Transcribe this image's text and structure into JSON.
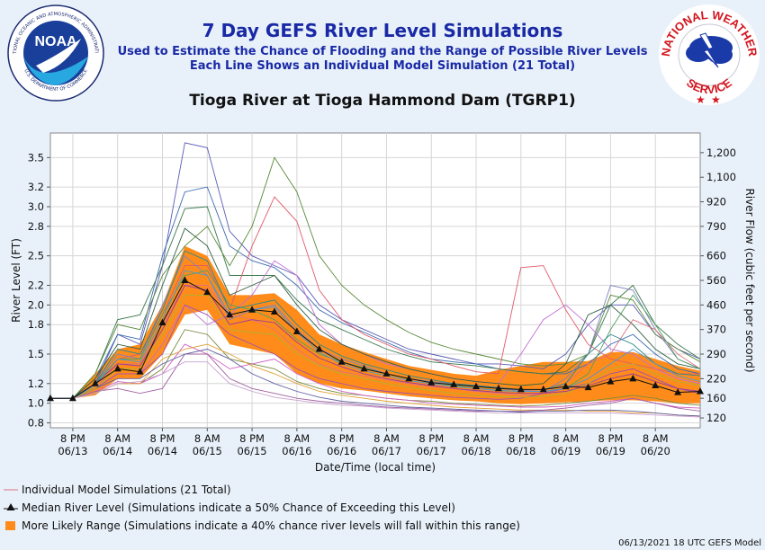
{
  "header": {
    "title": "7 Day GEFS River Level Simulations",
    "subtitle1": "Used to Estimate the Chance of Flooding and the Range of Possible River Levels",
    "subtitle2": "Each Line Shows an Individual Model Simulation (21 Total)",
    "noaa_logo_text": "NOAA",
    "noaa_ring_top": "NATIONAL OCEANIC AND ATMOSPHERIC ADMINISTRATION",
    "noaa_ring_bottom": "U.S. DEPARTMENT OF COMMERCE",
    "nws_ring_top": "NATIONAL WEATHER",
    "nws_ring_bottom": "SERVICE"
  },
  "legend": {
    "individual": "Individual Model Simulations (21 Total)",
    "median": "Median River Level (Simulations indicate a 50% Chance of Exceeding this Level)",
    "range": "More Likely Range (Simulations indicate a 40% chance river levels will fall within this range)"
  },
  "footer": "06/13/2021 18 UTC GEFS Model",
  "colors": {
    "range_fill": "#ff8c1a",
    "median_line": "#111111",
    "title_blue": "#1a2aa6",
    "nws_red": "#d4141e"
  },
  "chart_data": {
    "type": "line",
    "title": "Tioga River at Tioga Hammond Dam (TGRP1)",
    "xlabel": "Date/Time (local time)",
    "ylabel": "River Level (FT)",
    "y2label": "River Flow (cubic feet per second)",
    "xlim": [
      0,
      29
    ],
    "ylim": [
      0.75,
      3.75
    ],
    "yticks": [
      0.8,
      1.0,
      1.2,
      1.5,
      1.8,
      2.0,
      2.2,
      2.5,
      2.8,
      3.0,
      3.2,
      3.5
    ],
    "y2ticks": [
      {
        "level": 0.85,
        "label": "120"
      },
      {
        "level": 1.05,
        "label": "160"
      },
      {
        "level": 1.25,
        "label": "220"
      },
      {
        "level": 1.5,
        "label": "290"
      },
      {
        "level": 1.75,
        "label": "370"
      },
      {
        "level": 2.0,
        "label": "460"
      },
      {
        "level": 2.25,
        "label": "560"
      },
      {
        "level": 2.5,
        "label": "660"
      },
      {
        "level": 2.8,
        "label": "790"
      },
      {
        "level": 3.05,
        "label": "920"
      },
      {
        "level": 3.3,
        "label": "1,100"
      },
      {
        "level": 3.55,
        "label": "1,200"
      }
    ],
    "xticks": [
      {
        "x": 1,
        "label1": "8 PM",
        "label2": "06/13"
      },
      {
        "x": 3,
        "label1": "8 AM",
        "label2": "06/14"
      },
      {
        "x": 5,
        "label1": "8 PM",
        "label2": "06/14"
      },
      {
        "x": 7,
        "label1": "8 AM",
        "label2": "06/15"
      },
      {
        "x": 9,
        "label1": "8 PM",
        "label2": "06/15"
      },
      {
        "x": 11,
        "label1": "8 AM",
        "label2": "06/16"
      },
      {
        "x": 13,
        "label1": "8 PM",
        "label2": "06/16"
      },
      {
        "x": 15,
        "label1": "8 AM",
        "label2": "06/17"
      },
      {
        "x": 17,
        "label1": "8 PM",
        "label2": "06/17"
      },
      {
        "x": 19,
        "label1": "8 AM",
        "label2": "06/18"
      },
      {
        "x": 21,
        "label1": "8 PM",
        "label2": "06/18"
      },
      {
        "x": 23,
        "label1": "8 AM",
        "label2": "06/19"
      },
      {
        "x": 25,
        "label1": "8 PM",
        "label2": "06/19"
      },
      {
        "x": 27,
        "label1": "8 AM",
        "label2": "06/20"
      }
    ],
    "grid": true,
    "range_upper": [
      1.05,
      1.05,
      1.3,
      1.55,
      1.6,
      2.0,
      2.6,
      2.5,
      2.1,
      2.1,
      2.12,
      1.95,
      1.7,
      1.6,
      1.52,
      1.45,
      1.38,
      1.34,
      1.3,
      1.28,
      1.34,
      1.38,
      1.42,
      1.42,
      1.43,
      1.52,
      1.52,
      1.45,
      1.38,
      1.33
    ],
    "range_lower": [
      1.05,
      1.05,
      1.08,
      1.25,
      1.25,
      1.5,
      1.9,
      1.95,
      1.6,
      1.55,
      1.5,
      1.3,
      1.2,
      1.15,
      1.13,
      1.1,
      1.07,
      1.05,
      1.03,
      1.02,
      1.0,
      0.99,
      1.0,
      1.01,
      1.02,
      1.03,
      1.03,
      1.02,
      1.0,
      1.0
    ],
    "median": [
      1.05,
      1.05,
      1.2,
      1.35,
      1.32,
      1.82,
      2.25,
      2.13,
      1.9,
      1.95,
      1.93,
      1.73,
      1.55,
      1.42,
      1.35,
      1.3,
      1.25,
      1.21,
      1.19,
      1.17,
      1.15,
      1.14,
      1.14,
      1.17,
      1.16,
      1.22,
      1.25,
      1.18,
      1.11,
      1.12
    ],
    "series": [
      {
        "color": "#5a5ab8",
        "values": [
          1.05,
          1.05,
          1.2,
          1.7,
          1.6,
          2.4,
          3.65,
          3.6,
          2.75,
          2.5,
          2.4,
          2.3,
          2.0,
          1.85,
          1.75,
          1.65,
          1.55,
          1.5,
          1.45,
          1.4,
          1.4,
          1.38,
          1.35,
          1.5,
          1.8,
          2.0,
          2.0,
          1.7,
          1.55,
          1.45
        ]
      },
      {
        "color": "#3a6ab0",
        "values": [
          1.05,
          1.05,
          1.25,
          1.7,
          1.65,
          2.5,
          3.15,
          3.2,
          2.6,
          2.45,
          2.38,
          2.2,
          1.95,
          1.82,
          1.72,
          1.62,
          1.52,
          1.45,
          1.42,
          1.4,
          1.35,
          1.32,
          1.3,
          1.3,
          1.4,
          1.6,
          1.7,
          1.5,
          1.35,
          1.3
        ]
      },
      {
        "color": "#3b7a4e",
        "values": [
          1.05,
          1.05,
          1.3,
          1.85,
          1.9,
          2.4,
          2.98,
          3.0,
          2.3,
          2.3,
          2.3,
          2.05,
          1.85,
          1.75,
          1.65,
          1.55,
          1.48,
          1.42,
          1.4,
          1.38,
          1.35,
          1.32,
          1.3,
          1.32,
          1.5,
          2.0,
          2.2,
          1.8,
          1.6,
          1.45
        ]
      },
      {
        "color": "#5a8a3a",
        "values": [
          1.05,
          1.05,
          1.3,
          1.8,
          1.75,
          2.3,
          2.6,
          2.8,
          2.4,
          2.8,
          3.5,
          3.15,
          2.5,
          2.2,
          2.0,
          1.85,
          1.72,
          1.62,
          1.55,
          1.5,
          1.45,
          1.4,
          1.38,
          1.4,
          1.5,
          2.1,
          2.05,
          1.7,
          1.55,
          1.42
        ]
      },
      {
        "color": "#e05a6a",
        "values": [
          1.05,
          1.05,
          1.2,
          1.45,
          1.5,
          1.9,
          2.4,
          2.4,
          1.95,
          2.6,
          3.1,
          2.85,
          2.15,
          1.85,
          1.7,
          1.6,
          1.5,
          1.45,
          1.38,
          1.32,
          1.3,
          2.38,
          2.4,
          1.95,
          1.6,
          1.45,
          1.4,
          1.35,
          1.3,
          1.3
        ]
      },
      {
        "color": "#c070d0",
        "values": [
          1.05,
          1.05,
          1.15,
          1.3,
          1.3,
          1.6,
          2.0,
          1.8,
          1.9,
          2.1,
          2.45,
          2.3,
          1.8,
          1.6,
          1.5,
          1.4,
          1.35,
          1.3,
          1.25,
          1.22,
          1.2,
          1.5,
          1.85,
          2.0,
          1.8,
          1.55,
          1.5,
          1.35,
          1.25,
          1.2
        ]
      },
      {
        "color": "#306040",
        "values": [
          1.05,
          1.05,
          1.25,
          1.6,
          1.55,
          2.2,
          2.78,
          2.6,
          2.1,
          2.2,
          2.3,
          2.0,
          1.75,
          1.6,
          1.5,
          1.42,
          1.35,
          1.3,
          1.25,
          1.22,
          1.2,
          1.18,
          1.2,
          1.4,
          1.9,
          2.0,
          1.8,
          1.55,
          1.4,
          1.35
        ]
      },
      {
        "color": "#8080c0",
        "values": [
          1.05,
          1.05,
          1.2,
          1.5,
          1.45,
          2.0,
          2.5,
          2.3,
          1.85,
          1.95,
          2.0,
          1.75,
          1.55,
          1.45,
          1.38,
          1.3,
          1.25,
          1.22,
          1.2,
          1.18,
          1.15,
          1.13,
          1.12,
          1.25,
          1.5,
          2.2,
          2.15,
          1.75,
          1.45,
          1.35
        ]
      },
      {
        "color": "#e07080",
        "values": [
          1.05,
          1.05,
          1.15,
          1.4,
          1.4,
          1.8,
          2.2,
          2.2,
          1.9,
          1.85,
          1.75,
          1.55,
          1.4,
          1.32,
          1.28,
          1.24,
          1.2,
          1.17,
          1.15,
          1.12,
          1.1,
          1.08,
          1.1,
          1.2,
          1.4,
          1.5,
          1.85,
          1.75,
          1.5,
          1.35
        ]
      },
      {
        "color": "#50a060",
        "values": [
          1.05,
          1.05,
          1.2,
          1.45,
          1.45,
          1.9,
          2.3,
          2.35,
          2.0,
          1.95,
          1.85,
          1.65,
          1.5,
          1.42,
          1.36,
          1.3,
          1.25,
          1.21,
          1.18,
          1.15,
          1.13,
          1.12,
          1.12,
          1.15,
          1.3,
          1.75,
          2.1,
          1.8,
          1.45,
          1.35
        ]
      },
      {
        "color": "#a050b0",
        "values": [
          1.05,
          1.05,
          1.15,
          1.3,
          1.3,
          1.5,
          2.0,
          1.9,
          1.7,
          1.6,
          1.5,
          1.35,
          1.25,
          1.2,
          1.15,
          1.12,
          1.1,
          1.08,
          1.06,
          1.05,
          1.04,
          1.05,
          1.1,
          1.15,
          1.2,
          1.3,
          1.35,
          1.25,
          1.15,
          1.1
        ]
      },
      {
        "color": "#7a8a40",
        "values": [
          1.05,
          1.05,
          1.1,
          1.2,
          1.2,
          1.35,
          1.75,
          1.7,
          1.45,
          1.4,
          1.35,
          1.22,
          1.15,
          1.1,
          1.08,
          1.05,
          1.03,
          1.02,
          1.0,
          0.99,
          0.98,
          0.97,
          0.98,
          1.0,
          1.02,
          1.05,
          1.08,
          1.05,
          1.0,
          0.98
        ]
      },
      {
        "color": "#d060c0",
        "values": [
          1.05,
          1.05,
          1.12,
          1.22,
          1.2,
          1.3,
          1.6,
          1.5,
          1.35,
          1.4,
          1.45,
          1.3,
          1.2,
          1.12,
          1.08,
          1.05,
          1.03,
          1.0,
          0.99,
          0.98,
          0.97,
          0.96,
          0.96,
          0.97,
          1.0,
          1.02,
          1.05,
          1.0,
          0.96,
          0.95
        ]
      },
      {
        "color": "#e0a030",
        "values": [
          1.05,
          1.05,
          1.1,
          1.2,
          1.2,
          1.45,
          1.55,
          1.6,
          1.5,
          1.38,
          1.3,
          1.2,
          1.12,
          1.08,
          1.05,
          1.02,
          1.0,
          0.98,
          0.96,
          0.95,
          0.94,
          0.93,
          0.93,
          0.93,
          0.92,
          0.92,
          0.9,
          0.9,
          0.88,
          0.87
        ]
      },
      {
        "color": "#a060a0",
        "values": [
          1.05,
          1.05,
          1.12,
          1.15,
          1.1,
          1.15,
          1.5,
          1.5,
          1.25,
          1.15,
          1.1,
          1.05,
          1.02,
          1.0,
          0.98,
          0.96,
          0.95,
          0.94,
          0.93,
          0.92,
          0.92,
          0.92,
          0.93,
          0.95,
          0.98,
          1.0,
          1.05,
          1.0,
          0.95,
          0.92
        ]
      },
      {
        "color": "#6060a0",
        "values": [
          1.05,
          1.05,
          1.15,
          1.25,
          1.25,
          1.4,
          1.5,
          1.55,
          1.45,
          1.3,
          1.2,
          1.12,
          1.06,
          1.02,
          1.0,
          0.98,
          0.96,
          0.95,
          0.94,
          0.93,
          0.92,
          0.91,
          0.92,
          0.92,
          0.93,
          0.93,
          0.92,
          0.9,
          0.88,
          0.87
        ]
      },
      {
        "color": "#c8a0d0",
        "values": [
          1.05,
          1.05,
          1.1,
          1.2,
          1.22,
          1.3,
          1.42,
          1.42,
          1.2,
          1.12,
          1.06,
          1.03,
          1.0,
          0.98,
          0.97,
          0.95,
          0.94,
          0.93,
          0.92,
          0.91,
          0.9,
          0.9,
          0.9,
          0.9,
          0.9,
          0.9,
          0.89,
          0.88,
          0.87,
          0.86
        ]
      },
      {
        "color": "#2a8a8a",
        "values": [
          1.05,
          1.05,
          1.2,
          1.55,
          1.5,
          1.95,
          2.55,
          2.45,
          1.95,
          2.0,
          2.05,
          1.8,
          1.6,
          1.48,
          1.4,
          1.34,
          1.28,
          1.24,
          1.2,
          1.18,
          1.16,
          1.14,
          1.14,
          1.2,
          1.5,
          1.7,
          1.6,
          1.4,
          1.3,
          1.28
        ]
      },
      {
        "color": "#b0b030",
        "values": [
          1.05,
          1.05,
          1.15,
          1.35,
          1.35,
          1.7,
          2.1,
          2.1,
          1.75,
          1.72,
          1.7,
          1.5,
          1.38,
          1.3,
          1.25,
          1.2,
          1.16,
          1.13,
          1.1,
          1.08,
          1.07,
          1.06,
          1.07,
          1.1,
          1.2,
          1.35,
          1.4,
          1.3,
          1.22,
          1.18
        ]
      },
      {
        "color": "#9a3a9a",
        "values": [
          1.05,
          1.05,
          1.2,
          1.4,
          1.38,
          1.75,
          2.2,
          2.15,
          1.8,
          1.85,
          1.82,
          1.62,
          1.46,
          1.37,
          1.3,
          1.25,
          1.21,
          1.18,
          1.15,
          1.13,
          1.11,
          1.1,
          1.1,
          1.12,
          1.18,
          1.25,
          1.3,
          1.22,
          1.15,
          1.12
        ]
      },
      {
        "color": "#4a9ad0",
        "values": [
          1.05,
          1.05,
          1.18,
          1.45,
          1.42,
          1.85,
          2.35,
          2.3,
          1.9,
          1.95,
          1.98,
          1.72,
          1.52,
          1.4,
          1.33,
          1.28,
          1.23,
          1.2,
          1.17,
          1.15,
          1.13,
          1.12,
          1.12,
          1.15,
          1.25,
          1.4,
          1.55,
          1.4,
          1.28,
          1.22
        ]
      }
    ]
  }
}
